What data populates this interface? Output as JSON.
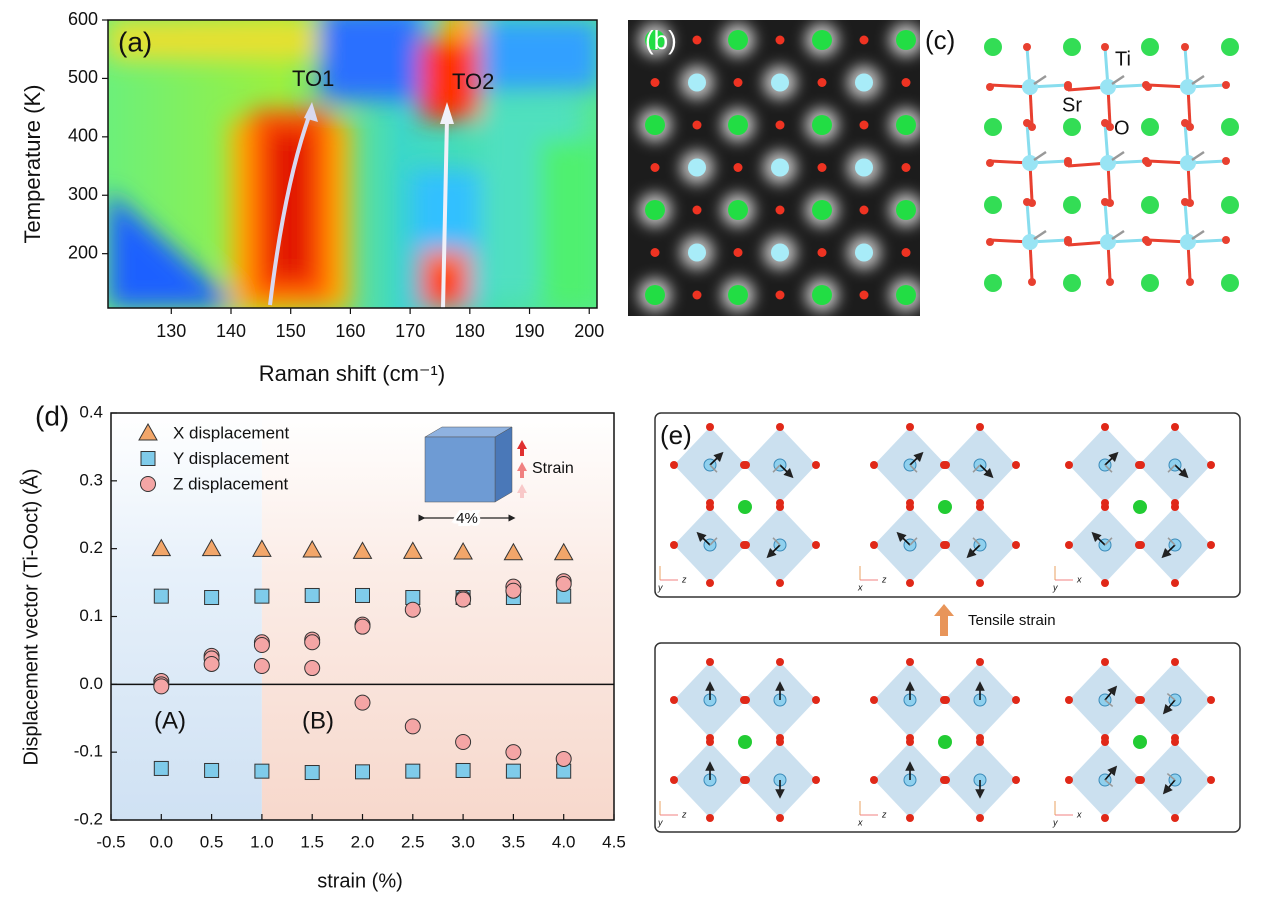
{
  "chart_data": [
    {
      "type": "contour",
      "panel_label": "(a)",
      "xlabel": "Raman shift (cm⁻¹)",
      "ylabel": "Temperature (K)",
      "xlim": [
        119.4,
        201.3
      ],
      "ylim": [
        107,
        600
      ],
      "xticks": [
        130,
        140,
        150,
        160,
        170,
        180,
        190,
        200
      ],
      "yticks": [
        200,
        300,
        400,
        500,
        600
      ],
      "annotations": [
        "TO1",
        "TO2"
      ]
    },
    {
      "type": "scatter",
      "panel_label": "(d)",
      "xlabel": "strain (%)",
      "ylabel": "Displacement vector (Ti-Ooct) (Å)",
      "xlim": [
        -0.5,
        4.5
      ],
      "ylim": [
        -0.2,
        0.4
      ],
      "xticks": [
        -0.5,
        {
          "value": 0,
          "label": "0.0"
        },
        0.5,
        {
          "value": 1,
          "label": "1.0"
        },
        1.5,
        {
          "value": 2,
          "label": "2.0"
        },
        2.5,
        {
          "value": 3,
          "label": "3.0"
        },
        3.5,
        {
          "value": 4,
          "label": "4.0"
        },
        4.5
      ],
      "yticks": [
        -0.2,
        -0.1,
        {
          "value": 0,
          "label": "0.0"
        },
        0.1,
        0.2,
        0.3,
        0.4
      ],
      "region_labels": [
        "(A)",
        "(B)"
      ],
      "inset": {
        "strain_label": "Strain",
        "width_label": "4%"
      },
      "series": [
        {
          "name": "X displacement",
          "marker": "triangle",
          "color": "#f2a66a",
          "x": [
            0,
            0.5,
            1,
            1.5,
            2,
            2.5,
            3,
            3.5,
            4
          ],
          "values": [
            0.2,
            0.2,
            0.199,
            0.198,
            0.196,
            0.196,
            0.195,
            0.194,
            0.194
          ]
        },
        {
          "name": "Y displacement",
          "marker": "square",
          "color": "#7fcbea",
          "x": [
            0,
            0.5,
            1,
            1.5,
            2,
            2.5,
            3,
            3.5,
            4,
            0,
            0.5,
            1,
            1.5,
            2,
            2.5,
            3,
            3.5,
            4
          ],
          "values": [
            0.13,
            0.128,
            0.13,
            0.131,
            0.131,
            0.128,
            0.128,
            0.128,
            0.13,
            -0.124,
            -0.127,
            -0.128,
            -0.13,
            -0.129,
            -0.128,
            -0.127,
            -0.128,
            -0.128
          ]
        },
        {
          "name": "Z displacement",
          "marker": "circle",
          "color": "#f4a5a5",
          "x": [
            0,
            0,
            0,
            0.5,
            0.5,
            0.5,
            1,
            1,
            1,
            1.5,
            1.5,
            1.5,
            2,
            2,
            2,
            2.5,
            2.5,
            3,
            3,
            3,
            3.5,
            3.5,
            3.5,
            4,
            4,
            4
          ],
          "values": [
            0.005,
            0.0,
            -0.003,
            0.042,
            0.038,
            0.03,
            0.062,
            0.058,
            0.027,
            0.066,
            0.062,
            0.024,
            0.088,
            0.085,
            -0.027,
            0.11,
            -0.062,
            0.127,
            0.125,
            -0.085,
            0.144,
            0.138,
            -0.1,
            0.152,
            0.148,
            -0.11
          ]
        }
      ]
    }
  ],
  "panel_b": {
    "label": "(b)"
  },
  "panel_c": {
    "label": "(c)",
    "atom_labels": [
      "Ti",
      "Sr",
      "O"
    ]
  },
  "panel_e": {
    "label": "(e)",
    "arrow_text": "Tensile strain",
    "axes": [
      [
        "z",
        "y"
      ],
      [
        "z",
        "x"
      ],
      [
        "x",
        "y"
      ],
      [
        "z",
        "y"
      ],
      [
        "z",
        "x"
      ],
      [
        "x",
        "y"
      ]
    ]
  }
}
